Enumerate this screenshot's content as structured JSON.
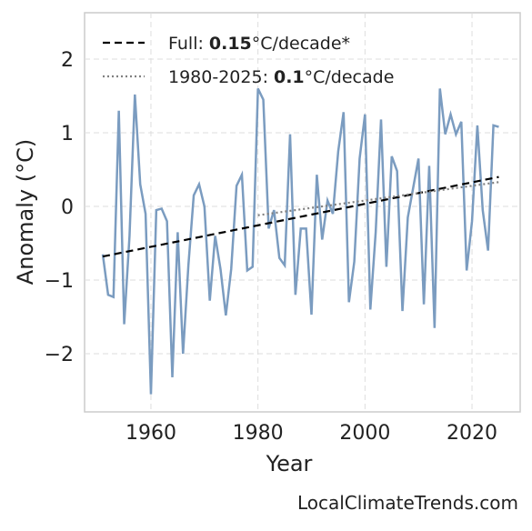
{
  "chart_data": {
    "type": "line",
    "xlabel": "Year",
    "ylabel": "Anomaly (°C)",
    "source": "LocalClimateTrends.com",
    "xlim": [
      1947.6,
      2029
    ],
    "ylim": [
      -2.79,
      2.63
    ],
    "xticks": [
      1960,
      1980,
      2000,
      2020
    ],
    "yticks": [
      {
        "value": -2,
        "label": "−2"
      },
      {
        "value": -1,
        "label": "−1"
      },
      0,
      1,
      2
    ],
    "grid": true,
    "legend": "upper left",
    "series": [
      {
        "color": "#7b9cc0",
        "style": "solid",
        "x": [
          1951,
          1952,
          1953,
          1954,
          1955,
          1956,
          1957,
          1958,
          1959,
          1960,
          1961,
          1962,
          1963,
          1964,
          1965,
          1966,
          1967,
          1968,
          1969,
          1970,
          1971,
          1972,
          1973,
          1974,
          1975,
          1976,
          1977,
          1978,
          1979,
          1980,
          1981,
          1982,
          1983,
          1984,
          1985,
          1986,
          1987,
          1988,
          1989,
          1990,
          1991,
          1992,
          1993,
          1994,
          1995,
          1996,
          1997,
          1998,
          1999,
          2000,
          2001,
          2002,
          2003,
          2004,
          2005,
          2006,
          2007,
          2008,
          2009,
          2010,
          2011,
          2012,
          2013,
          2014,
          2015,
          2016,
          2017,
          2018,
          2019,
          2020,
          2021,
          2022,
          2023,
          2024,
          2025
        ],
        "values": [
          -0.65,
          -1.2,
          -1.23,
          1.3,
          -1.6,
          -0.4,
          1.52,
          0.3,
          -0.1,
          -2.55,
          -0.05,
          -0.03,
          -0.2,
          -2.32,
          -0.35,
          -2.0,
          -0.8,
          0.15,
          0.3,
          0.0,
          -1.28,
          -0.4,
          -0.85,
          -1.48,
          -0.85,
          0.28,
          0.43,
          -0.87,
          -0.82,
          1.6,
          1.45,
          -0.3,
          -0.05,
          -0.7,
          -0.8,
          0.98,
          -1.2,
          -0.3,
          -0.3,
          -1.47,
          0.43,
          -0.45,
          0.08,
          -0.1,
          0.75,
          1.28,
          -1.3,
          -0.75,
          0.65,
          1.25,
          -1.4,
          -0.35,
          1.18,
          -0.82,
          0.68,
          0.48,
          -1.42,
          -0.15,
          0.25,
          0.65,
          -1.33,
          0.55,
          -1.65,
          1.6,
          0.98,
          1.25,
          0.98,
          1.15,
          -0.87,
          -0.2,
          1.1,
          -0.05,
          -0.6,
          1.1,
          1.08
        ]
      },
      {
        "name": "Full:",
        "slope": 0.15,
        "unit": "°C/decade*",
        "color": "#000000",
        "style": "dashed",
        "x": [
          1951,
          2025
        ],
        "values": [
          -0.68,
          0.4
        ]
      },
      {
        "name": "1980-2025:",
        "slope": 0.1,
        "unit": "°C/decade",
        "color": "#808080",
        "style": "dotted",
        "x": [
          1980,
          2025
        ],
        "values": [
          -0.12,
          0.33
        ]
      }
    ]
  }
}
